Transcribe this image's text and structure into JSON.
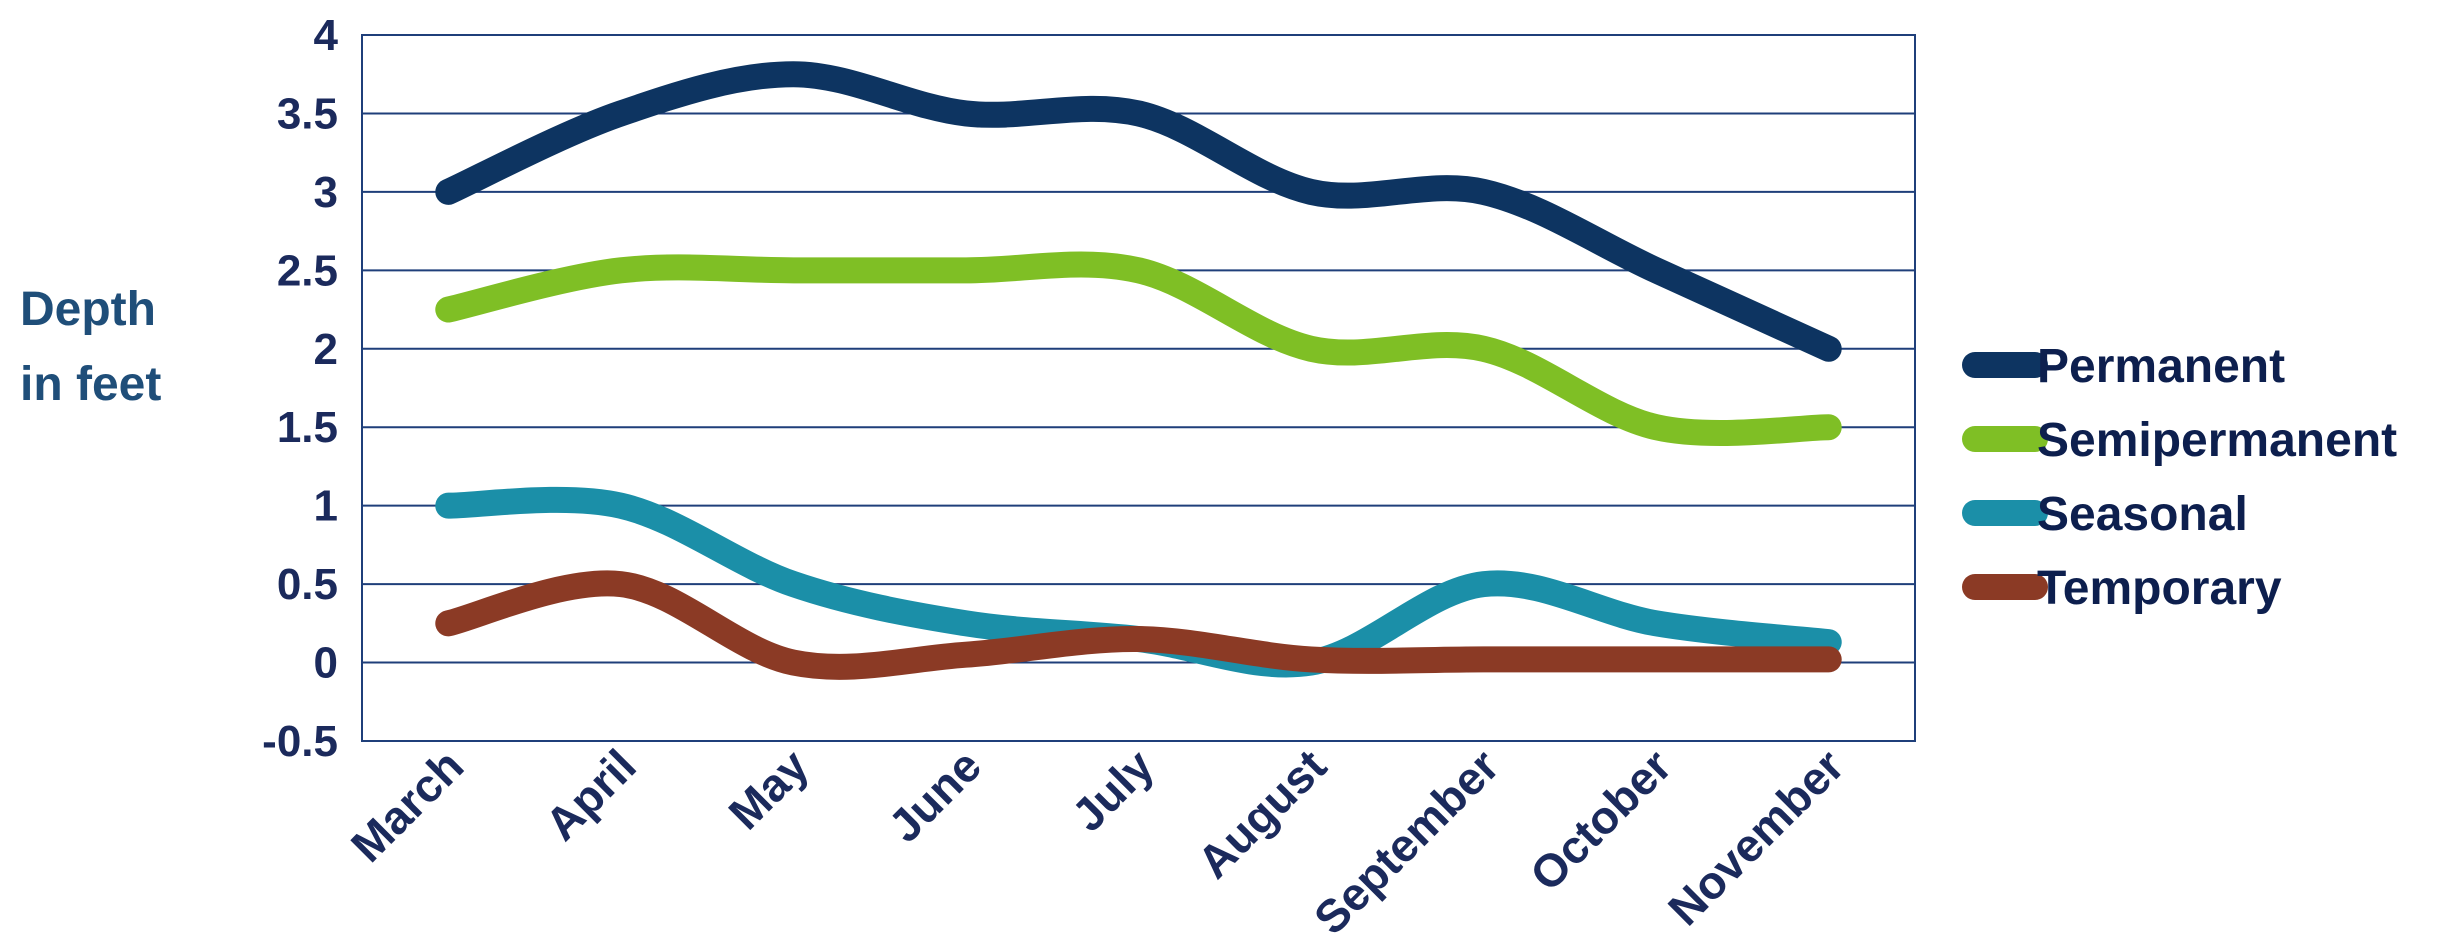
{
  "chart_data": {
    "type": "line",
    "title": "",
    "xlabel": "",
    "ylabel_lines": [
      "Depth",
      "in feet"
    ],
    "categories": [
      "March",
      "April",
      "May",
      "June",
      "July",
      "August",
      "September",
      "October",
      "November"
    ],
    "yticks": [
      "4",
      "3.5",
      "3",
      "2.5",
      "2",
      "1.5",
      "1",
      "0.5",
      "0",
      "-0.5"
    ],
    "ylim": [
      -0.5,
      4
    ],
    "grid": true,
    "legend_position": "right",
    "smooth": true,
    "series": [
      {
        "name": "Permanent",
        "color": "#0d3461",
        "values": [
          3.0,
          3.5,
          3.75,
          3.5,
          3.5,
          3.0,
          3.0,
          2.5,
          2.0
        ]
      },
      {
        "name": "Semipermanent",
        "color": "#7fbf25",
        "values": [
          2.25,
          2.5,
          2.5,
          2.5,
          2.5,
          2.0,
          2.0,
          1.5,
          1.5
        ]
      },
      {
        "name": "Seasonal",
        "color": "#1b8fa8",
        "values": [
          1.0,
          1.0,
          0.5,
          0.25,
          0.15,
          0.0,
          0.5,
          0.25,
          0.13
        ]
      },
      {
        "name": "Temporary",
        "color": "#8b3a25",
        "values": [
          0.25,
          0.5,
          0.0,
          0.05,
          0.15,
          0.02,
          0.02,
          0.02,
          0.02
        ]
      }
    ]
  }
}
